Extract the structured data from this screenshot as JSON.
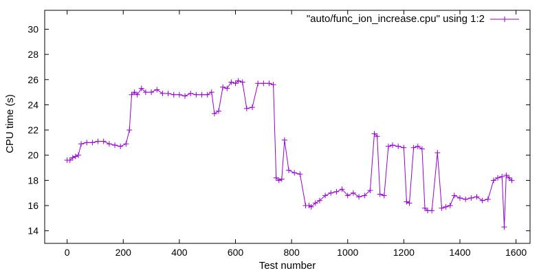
{
  "chart_data": {
    "type": "line",
    "xlabel": "Test number",
    "ylabel": "CPU time (s)",
    "xlim": [
      -80,
      1650
    ],
    "ylim": [
      13,
      31.5
    ],
    "x_ticks": [
      0,
      200,
      400,
      600,
      800,
      1000,
      1200,
      1400,
      1600
    ],
    "x_tick_labels": [
      "0",
      "200",
      "400",
      "600",
      "800",
      "1000",
      "1200",
      "1400",
      "1600"
    ],
    "y_ticks": [
      14,
      16,
      18,
      20,
      22,
      24,
      26,
      28,
      30
    ],
    "y_tick_labels": [
      "14",
      "16",
      "18",
      "20",
      "22",
      "24",
      "26",
      "28",
      "30"
    ],
    "grid": false,
    "legend_position": "top-right",
    "series": [
      {
        "name": "\"auto/func_ion_increase.cpu\" using 1:2",
        "color": "#9400d3",
        "marker": "plus",
        "x": [
          0,
          10,
          20,
          30,
          40,
          50,
          70,
          90,
          110,
          130,
          150,
          170,
          190,
          210,
          222,
          230,
          240,
          250,
          265,
          280,
          300,
          320,
          340,
          360,
          380,
          400,
          420,
          440,
          460,
          480,
          500,
          515,
          525,
          540,
          555,
          570,
          585,
          600,
          610,
          625,
          640,
          660,
          680,
          700,
          720,
          735,
          745,
          755,
          765,
          775,
          790,
          810,
          830,
          850,
          862,
          870,
          885,
          900,
          920,
          940,
          960,
          980,
          1000,
          1020,
          1040,
          1060,
          1080,
          1095,
          1105,
          1115,
          1130,
          1145,
          1160,
          1180,
          1200,
          1210,
          1220,
          1235,
          1250,
          1265,
          1275,
          1285,
          1300,
          1320,
          1335,
          1350,
          1365,
          1380,
          1400,
          1420,
          1440,
          1460,
          1480,
          1500,
          1520,
          1535,
          1550,
          1558,
          1565,
          1575,
          1585
        ],
        "y": [
          19.6,
          19.6,
          19.8,
          19.9,
          20.0,
          20.9,
          21.0,
          21.0,
          21.1,
          21.1,
          20.9,
          20.8,
          20.7,
          20.9,
          22.0,
          24.8,
          25.0,
          24.8,
          25.3,
          25.0,
          25.0,
          25.2,
          24.9,
          24.9,
          24.8,
          24.8,
          24.7,
          24.9,
          24.8,
          24.8,
          24.8,
          25.0,
          23.3,
          23.5,
          25.4,
          25.3,
          25.8,
          25.7,
          25.9,
          25.8,
          23.7,
          23.8,
          25.7,
          25.7,
          25.7,
          25.6,
          18.2,
          18.0,
          18.1,
          21.2,
          18.8,
          18.6,
          18.5,
          16.0,
          16.0,
          15.9,
          16.2,
          16.4,
          16.8,
          17.0,
          17.1,
          17.3,
          16.8,
          17.0,
          16.7,
          16.8,
          17.2,
          21.7,
          21.5,
          16.9,
          16.8,
          20.7,
          20.8,
          20.7,
          20.6,
          16.3,
          16.2,
          20.6,
          20.7,
          20.5,
          15.8,
          15.6,
          15.6,
          20.2,
          15.8,
          15.9,
          16.0,
          16.8,
          16.6,
          16.5,
          16.6,
          16.7,
          16.4,
          16.5,
          18.0,
          18.2,
          18.3,
          14.3,
          18.4,
          18.2,
          18.0
        ]
      }
    ]
  }
}
